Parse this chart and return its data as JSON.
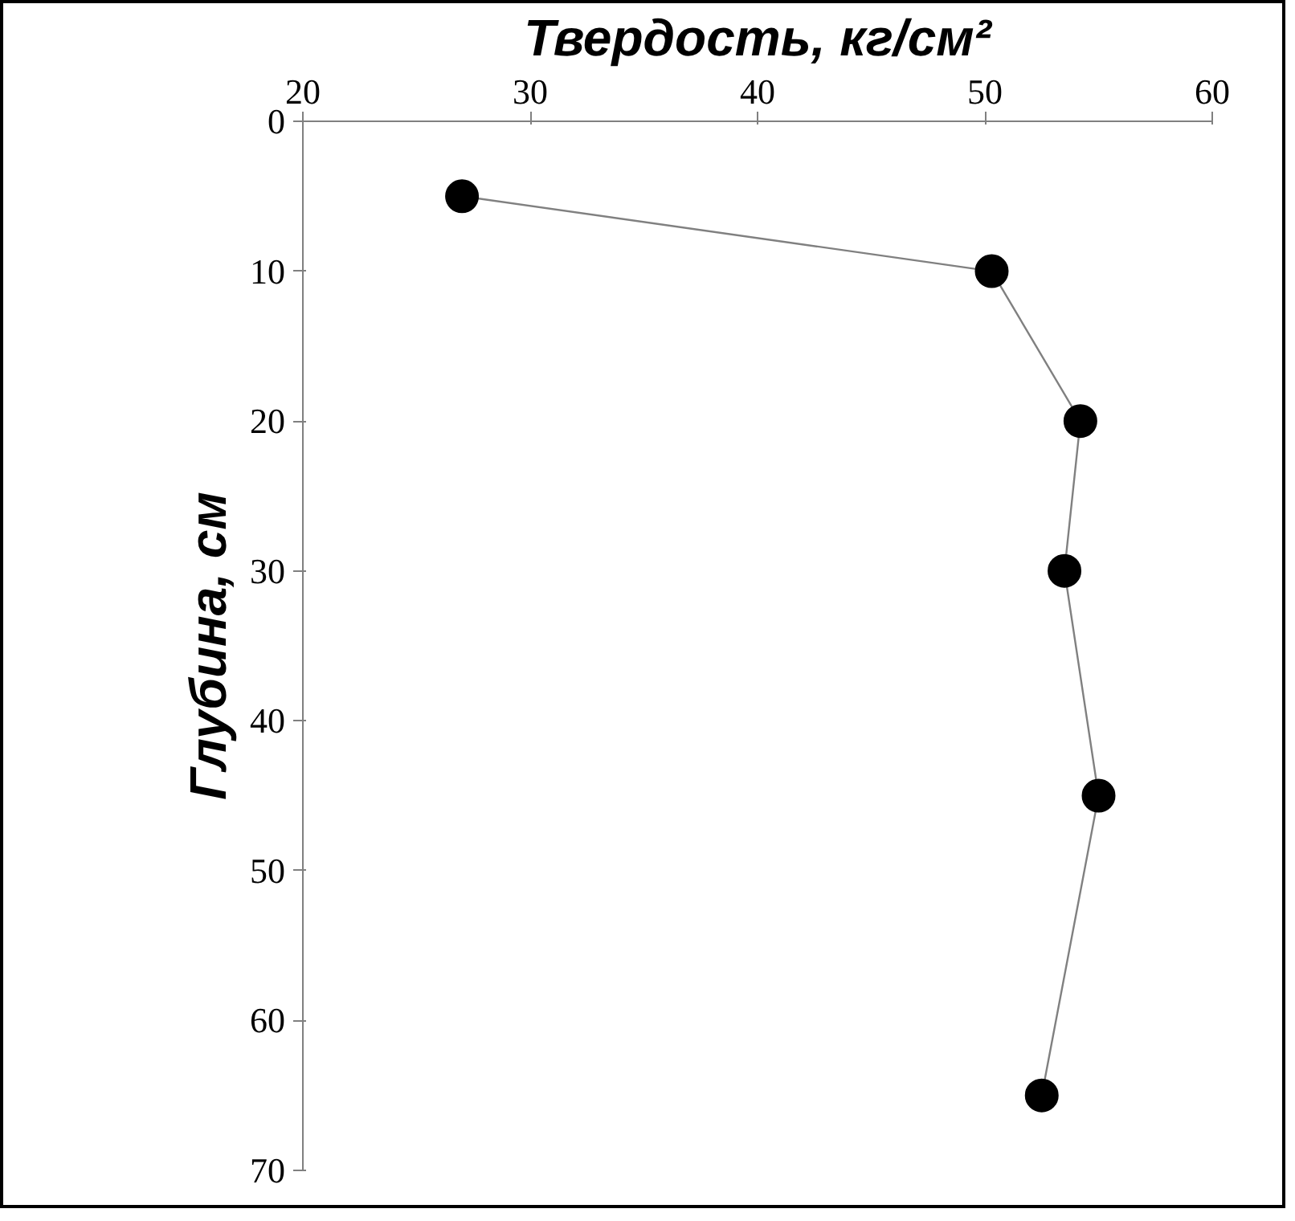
{
  "chart_data": {
    "type": "line",
    "xlabel": "Твердость, кг/см²",
    "ylabel": "Глубина, см",
    "x": [
      27,
      50.3,
      54.2,
      53.5,
      55,
      52.5
    ],
    "values": [
      5,
      10,
      20,
      30,
      45,
      65
    ],
    "color": "#000000",
    "xlim": [
      20,
      60
    ],
    "xticks": [
      20,
      30,
      40,
      50,
      60
    ],
    "ylim": [
      70,
      0
    ],
    "yticks": [
      0,
      10,
      20,
      30,
      40,
      50,
      60,
      70
    ],
    "marker": "circle",
    "line_style": "solid",
    "grid": false
  }
}
